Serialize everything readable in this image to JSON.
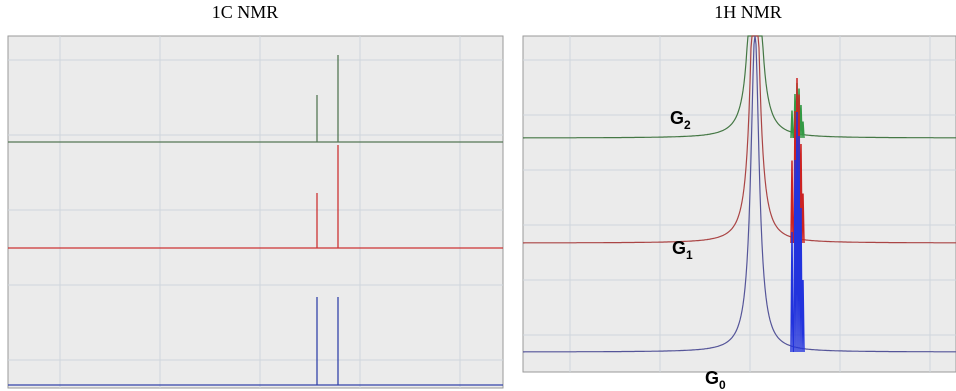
{
  "panels": [
    {
      "title": "1C NMR"
    },
    {
      "title": "1H NMR",
      "labels": [
        {
          "base": "G",
          "sub": "2"
        },
        {
          "base": "G",
          "sub": "1"
        },
        {
          "base": "G",
          "sub": "0"
        }
      ]
    }
  ]
}
